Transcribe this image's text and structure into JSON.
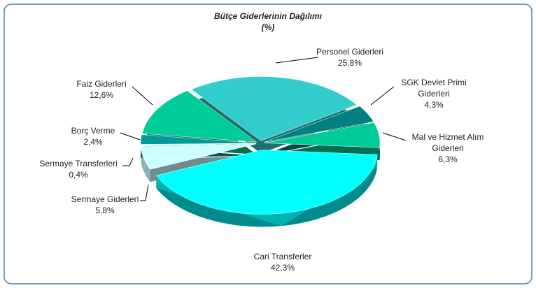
{
  "chart_data": {
    "type": "pie3d",
    "title": "Bütçe Giderlerinin Dağılımı",
    "subtitle": "(%)",
    "categories": [
      "Personel Giderleri",
      "SGK Devlet Primi Giderleri",
      "Mal ve Hizmet Alım Giderleri",
      "Cari Transferler",
      "Sermaye Giderleri",
      "Sermaye Transferleri",
      "Borç Verme",
      "Faiz Giderleri"
    ],
    "values": [
      25.8,
      4.3,
      6.3,
      42.3,
      5.8,
      0.4,
      2.4,
      12.6
    ],
    "value_labels": [
      "25,8%",
      "4,3%",
      "6,3%",
      "42,3%",
      "5,8%",
      "0,4%",
      "2,4%",
      "12,6%"
    ],
    "colors": [
      "#33cccc",
      "#008080",
      "#00cc99",
      "#00ffff",
      "#ccffff",
      "#e8ffff",
      "#009999",
      "#00cc99"
    ]
  }
}
